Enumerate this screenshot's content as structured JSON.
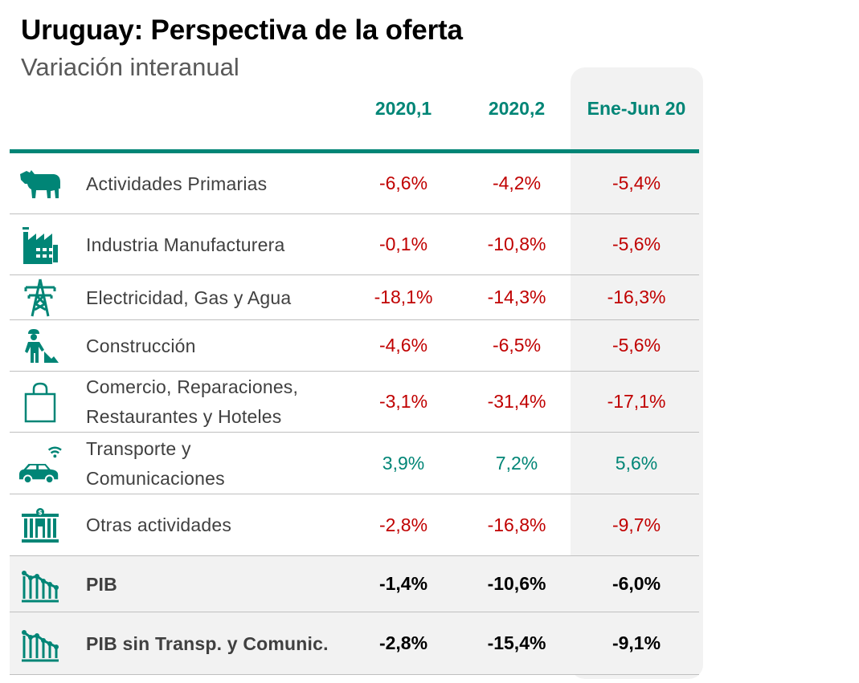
{
  "title": "Uruguay: Perspectiva de la oferta",
  "subtitle": "Variación interanual",
  "columns": [
    "2020,1",
    "2020,2",
    "Ene-Jun 20"
  ],
  "colors": {
    "accent": "#008576",
    "negative": "#c00000",
    "highlight_bg": "#f2f2f2"
  },
  "rows": [
    {
      "icon": "cow-icon",
      "label": [
        "Actividades Primarias"
      ],
      "values": [
        "-6,6%",
        "-4,2%",
        "-5,4%"
      ],
      "sign": "neg"
    },
    {
      "icon": "factory-icon",
      "label": [
        "Industria Manufacturera"
      ],
      "values": [
        "-0,1%",
        "-10,8%",
        "-5,6%"
      ],
      "sign": "neg"
    },
    {
      "icon": "power-tower-icon",
      "label": [
        "Electricidad, Gas y Agua"
      ],
      "values": [
        "-18,1%",
        "-14,3%",
        "-16,3%"
      ],
      "sign": "neg"
    },
    {
      "icon": "construction-worker-icon",
      "label": [
        "Construcción"
      ],
      "values": [
        "-4,6%",
        "-6,5%",
        "-5,6%"
      ],
      "sign": "neg"
    },
    {
      "icon": "shopping-bag-icon",
      "label": [
        "Comercio, Reparaciones,",
        "Restaurantes y Hoteles"
      ],
      "values": [
        "-3,1%",
        "-31,4%",
        "-17,1%"
      ],
      "sign": "neg"
    },
    {
      "icon": "car-wifi-icon",
      "label": [
        "Transporte y",
        "Comunicaciones"
      ],
      "values": [
        "3,9%",
        "7,2%",
        "5,6%"
      ],
      "sign": "pos"
    },
    {
      "icon": "bank-building-icon",
      "label": [
        "Otras actividades"
      ],
      "values": [
        "-2,8%",
        "-16,8%",
        "-9,7%"
      ],
      "sign": "neg"
    },
    {
      "icon": "bar-chart-icon",
      "label": [
        "PIB"
      ],
      "values": [
        "-1,4%",
        "-10,6%",
        "-6,0%"
      ],
      "sign": "total"
    },
    {
      "icon": "bar-chart-icon",
      "label": [
        "PIB sin Transp. y Comunic."
      ],
      "values": [
        "-2,8%",
        "-15,4%",
        "-9,1%"
      ],
      "sign": "total"
    }
  ]
}
